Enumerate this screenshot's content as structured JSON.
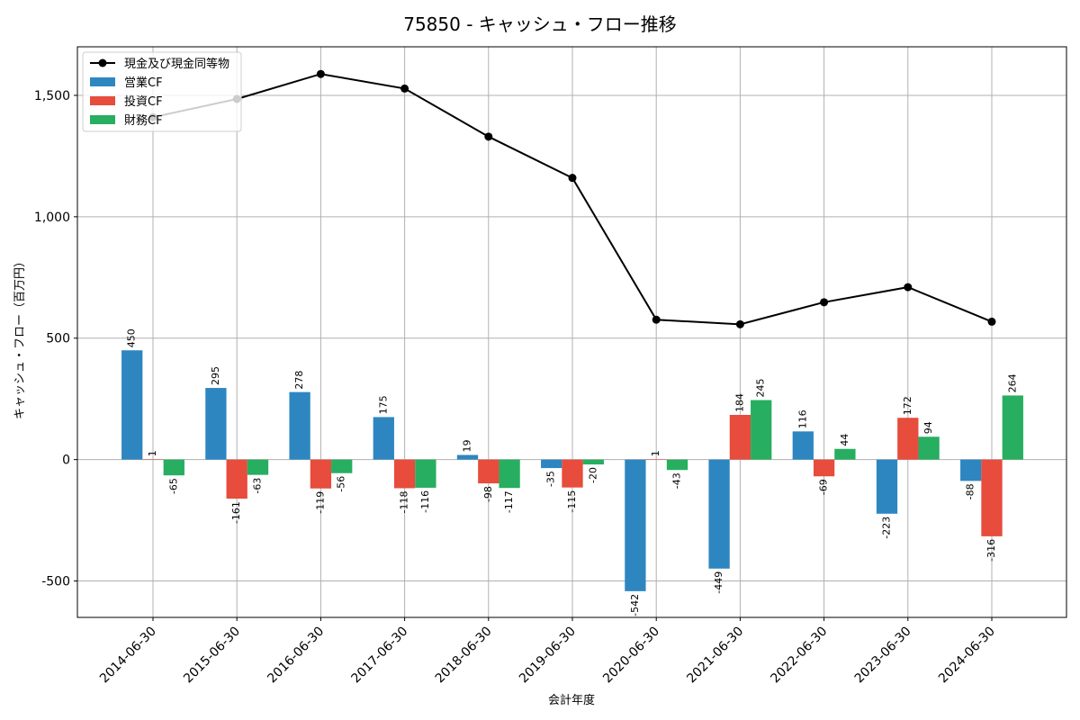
{
  "chart_data": {
    "type": "bar",
    "title": "75850 - キャッシュ・フロー推移",
    "xlabel": "会計年度",
    "ylabel": "キャッシュ・フロー（百万円）",
    "categories": [
      "2014-06-30",
      "2015-06-30",
      "2016-06-30",
      "2017-06-30",
      "2018-06-30",
      "2019-06-30",
      "2020-06-30",
      "2021-06-30",
      "2022-06-30",
      "2023-06-30",
      "2024-06-30"
    ],
    "ylim": [
      -650,
      1700
    ],
    "yticks": [
      -500,
      0,
      500,
      1000,
      1500
    ],
    "ytick_labels": [
      "-500",
      "0",
      "500",
      "1,000",
      "1,500"
    ],
    "grid": true,
    "legend_position": "top-left",
    "series": [
      {
        "name": "営業CF",
        "kind": "bar",
        "color": "#2e86c1",
        "values": [
          450,
          295,
          278,
          175,
          19,
          -35,
          -542,
          -449,
          116,
          -223,
          -88
        ],
        "labels": [
          "450",
          "295",
          "278",
          "175",
          "19",
          "-35",
          "-542",
          "-449",
          "116",
          "-223",
          "-88"
        ]
      },
      {
        "name": "投資CF",
        "kind": "bar",
        "color": "#e74c3c",
        "values": [
          1,
          -161,
          -119,
          -118,
          -98,
          -115,
          1,
          184,
          -69,
          172,
          -316
        ],
        "labels": [
          "1",
          "-161",
          "-119",
          "-118",
          "-98",
          "-115",
          "1",
          "184",
          "-69",
          "172",
          "-316"
        ]
      },
      {
        "name": "財務CF",
        "kind": "bar",
        "color": "#27ae60",
        "values": [
          -65,
          -63,
          -56,
          -116,
          -117,
          -20,
          -43,
          245,
          44,
          94,
          264
        ],
        "labels": [
          "-65",
          "-63",
          "-56",
          "-116",
          "-117",
          "-20",
          "-43",
          "245",
          "44",
          "94",
          "264"
        ]
      },
      {
        "name": "現金及び現金同等物",
        "kind": "line",
        "color": "#000000",
        "values": [
          1410,
          1485,
          1588,
          1528,
          1330,
          1160,
          576,
          557,
          648,
          710,
          568
        ]
      }
    ]
  }
}
